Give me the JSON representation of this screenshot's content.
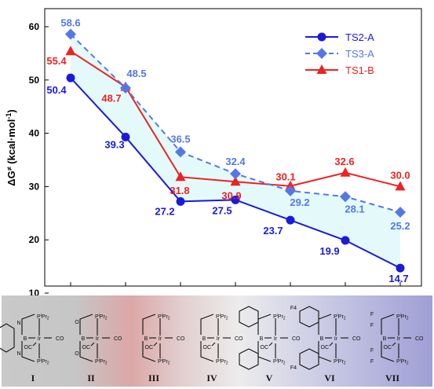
{
  "chart_data": {
    "type": "line",
    "ylabel": "ΔG≠ (kcal·mol-1)",
    "ylim": [
      10,
      65
    ],
    "yticks": [
      10,
      20,
      30,
      40,
      50,
      60
    ],
    "categories": [
      "I",
      "II",
      "III",
      "IV",
      "V",
      "VI",
      "VII"
    ],
    "legend_position": "top-right",
    "series": [
      {
        "name": "TS2-A",
        "color": "#1a1adb",
        "dash": "solid",
        "marker": "circle",
        "values": [
          50.4,
          39.3,
          27.2,
          27.5,
          23.7,
          19.9,
          14.7
        ],
        "labels": [
          "50.4",
          "39.3",
          "27.2",
          "27.5",
          "23.7",
          "19.9",
          "14.7"
        ]
      },
      {
        "name": "TS3-A",
        "color": "#5577e6",
        "dash": "dashed",
        "marker": "diamond",
        "values": [
          58.6,
          48.5,
          36.5,
          32.4,
          29.2,
          28.1,
          25.2
        ],
        "labels": [
          "58.6",
          "48.5",
          "36.5",
          "32.4",
          "29.2",
          "28.1",
          "25.2"
        ]
      },
      {
        "name": "TS1-B",
        "color": "#ee2222",
        "dash": "solid",
        "marker": "triangle",
        "values": [
          55.4,
          48.7,
          31.8,
          30.9,
          30.1,
          32.6,
          30.0
        ],
        "labels": [
          "55.4",
          "48.7",
          "31.8",
          "30.9",
          "30.1",
          "32.6",
          "30.0"
        ]
      }
    ],
    "fill_between": {
      "upper": "TS3-A",
      "lower": "TS2-A",
      "color": "#e4fafa"
    }
  },
  "structures": {
    "panel_labels": [
      "I",
      "II",
      "III",
      "IV",
      "V",
      "VI",
      "VII"
    ],
    "atom_labels": {
      "Ir": "Ir",
      "B": "B",
      "N": "N",
      "O": "O",
      "F": "F",
      "F4": "F4",
      "CO": "CO",
      "OC": "OC",
      "PiPr2": "PiPr2"
    }
  }
}
